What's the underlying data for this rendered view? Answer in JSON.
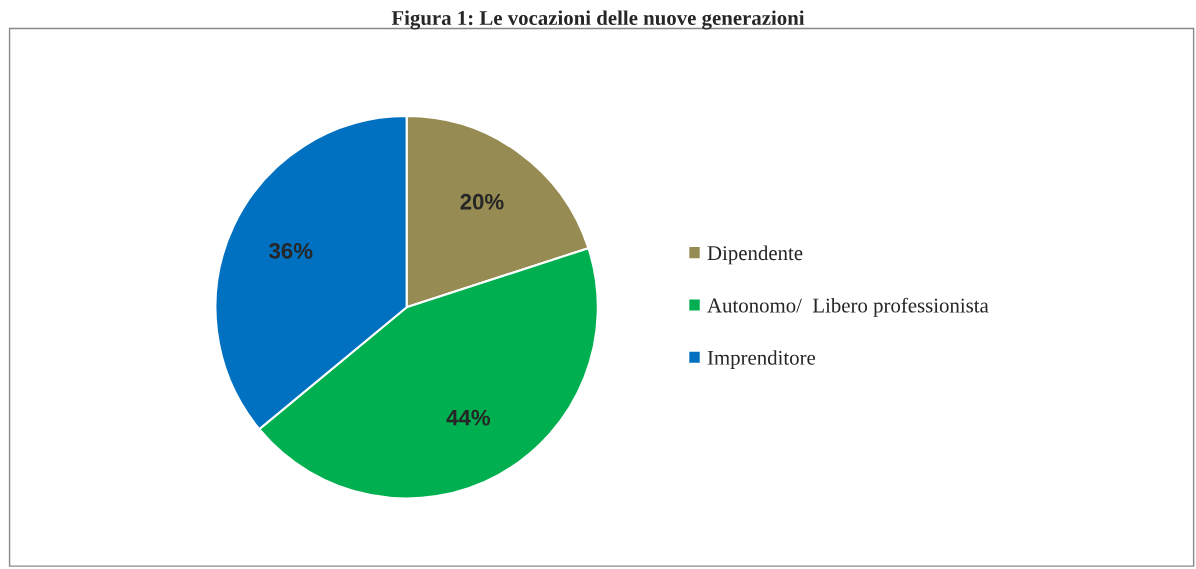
{
  "chart_data": {
    "type": "pie",
    "title": "Figura 1: Le vocazioni delle nuove generazioni",
    "categories": [
      "Dipendente",
      "Autonomo/  Libero professionista",
      "Imprenditore"
    ],
    "values": [
      20,
      44,
      36
    ],
    "colors": [
      "#968b52",
      "#00b050",
      "#0070c0"
    ],
    "value_labels": [
      "20%",
      "44%",
      "36%"
    ],
    "legend": "right"
  }
}
